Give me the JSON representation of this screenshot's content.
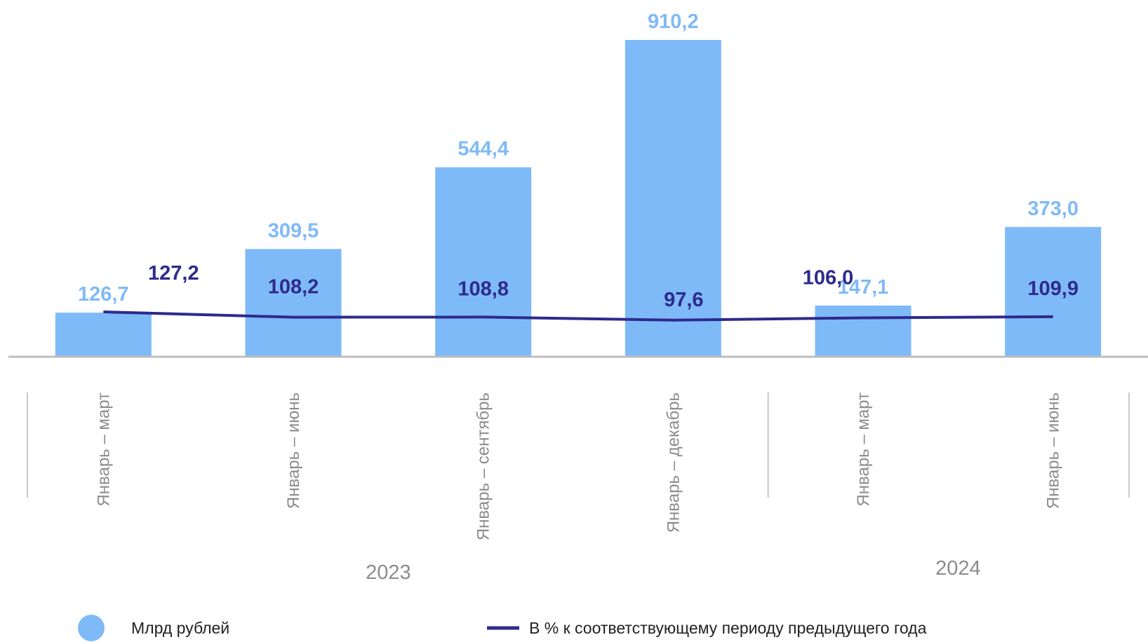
{
  "chart_data": {
    "type": "bar",
    "title": "",
    "xlabel": "",
    "ylabel": "",
    "grid": false,
    "legend_position": "bottom",
    "categories": [
      "Январь – март",
      "Январь – июнь",
      "Январь – сентябрь",
      "Январь – декабрь",
      "Январь – март",
      "Январь – июнь"
    ],
    "category_groups": [
      {
        "label": "2023",
        "count": 4
      },
      {
        "label": "2024",
        "count": 2
      }
    ],
    "series": [
      {
        "name": "Млрд рублей",
        "type": "bar",
        "color": "#7fbaf8",
        "values": [
          126.7,
          309.5,
          544.4,
          910.2,
          147.1,
          373.0
        ],
        "labels": [
          "126,7",
          "309,5",
          "544,4",
          "910,2",
          "147,1",
          "373,0"
        ]
      },
      {
        "name": "В % к соответствующему периоду предыдущего года",
        "type": "line",
        "color": "#2e2a8c",
        "values": [
          127.2,
          108.2,
          108.8,
          97.6,
          106.0,
          109.9
        ],
        "labels": [
          "127,2",
          "108,2",
          "108,8",
          "97,6",
          "106,0",
          "109,9"
        ]
      }
    ]
  }
}
